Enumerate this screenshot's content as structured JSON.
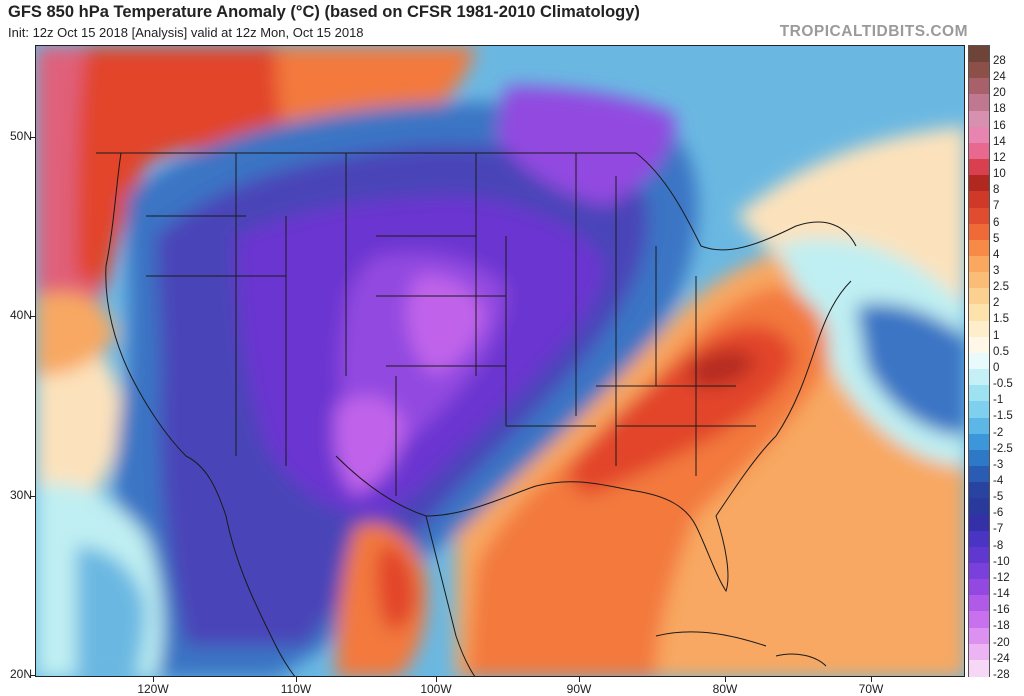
{
  "header": {
    "title": "GFS 850 hPa Temperature Anomaly (°C) (based on CFSR 1981-2010 Climatology)",
    "subtitle": "Init: 12z Oct 15 2018   [Analysis]   valid at 12z Mon, Oct 15 2018",
    "brand": "TROPICALTIDBITS.COM"
  },
  "map": {
    "lat_labels": [
      "50N",
      "40N",
      "30N",
      "20N"
    ],
    "lon_labels": [
      "120W",
      "110W",
      "100W",
      "90W",
      "80W",
      "70W"
    ],
    "colors": {
      "pink": "#e0607a",
      "red_dark": "#b52a22",
      "red": "#e2442c",
      "orange": "#f3793c",
      "orange_light": "#f8a862",
      "peach": "#fce2bc",
      "cyan_light": "#bfeff2",
      "blue_light": "#6ab8e2",
      "blue": "#3a74c4",
      "indigo": "#4a45b8",
      "purple": "#6a36d0",
      "violet": "#9248e0",
      "magenta": "#c064ea"
    }
  },
  "colorbar": {
    "labels": [
      "28",
      "24",
      "20",
      "18",
      "16",
      "14",
      "12",
      "10",
      "8",
      "7",
      "6",
      "5",
      "4",
      "3",
      "2.5",
      "2",
      "1.5",
      "1",
      "0.5",
      "0",
      "-0.5",
      "-1",
      "-1.5",
      "-2",
      "-2.5",
      "-3",
      "-4",
      "-5",
      "-6",
      "-7",
      "-8",
      "-10",
      "-12",
      "-14",
      "-16",
      "-18",
      "-20",
      "-24",
      "-28"
    ],
    "colors": [
      "#6e4438",
      "#8c5048",
      "#a8606a",
      "#c07890",
      "#d890b0",
      "#e884b0",
      "#e86890",
      "#d84050",
      "#b02820",
      "#d03828",
      "#e04c30",
      "#f06a38",
      "#f88a48",
      "#faa860",
      "#fbbc78",
      "#fcd090",
      "#fde2ac",
      "#feeecc",
      "#fff8e8",
      "#e8fafc",
      "#c4f0f6",
      "#9ee2f2",
      "#7ed0ee",
      "#5cb6e6",
      "#3c96da",
      "#2e78c8",
      "#2a5cb4",
      "#2844a0",
      "#2a3a9c",
      "#3430a8",
      "#4a34c4",
      "#6038d0",
      "#7a40dc",
      "#9448e2",
      "#b05ae8",
      "#c870ee",
      "#dc90f0",
      "#ecb4f2",
      "#f6d8f6"
    ]
  }
}
